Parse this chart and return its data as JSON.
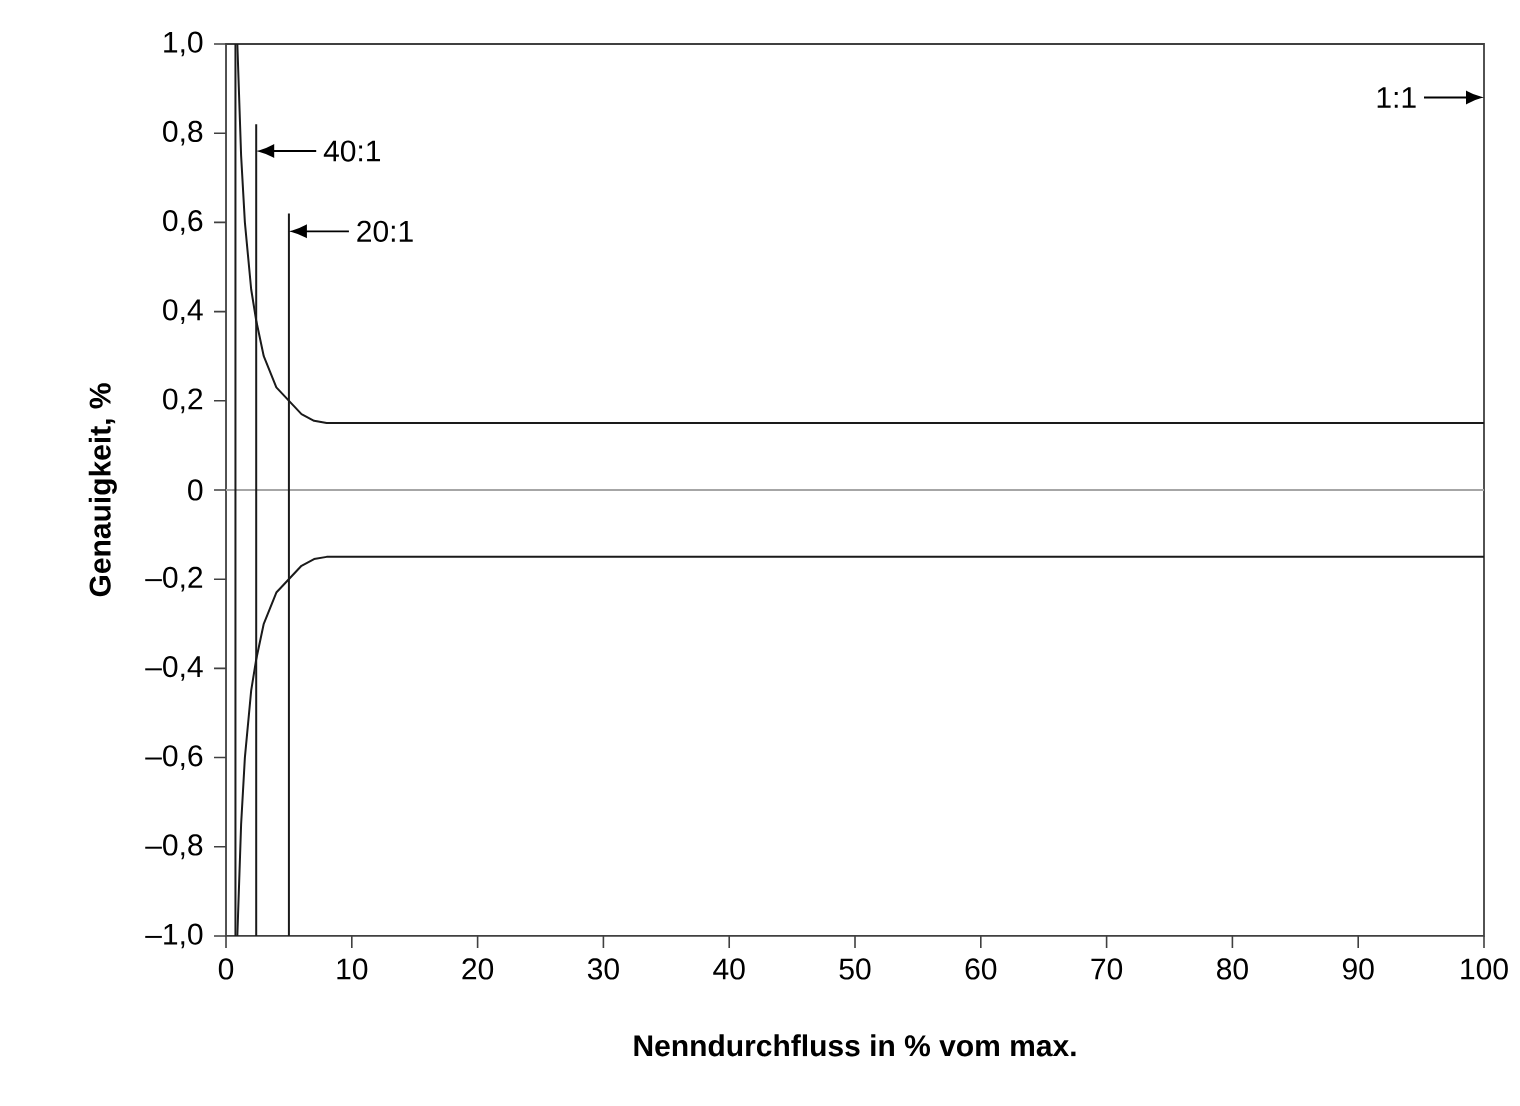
{
  "chart_data": {
    "type": "line",
    "xlabel": "Nenndurchfluss in % vom max.",
    "ylabel": "Genauigkeit, %",
    "xlim": [
      0,
      100
    ],
    "ylim": [
      -1.0,
      1.0
    ],
    "xticks": [
      0,
      10,
      20,
      30,
      40,
      50,
      60,
      70,
      80,
      90,
      100
    ],
    "yticks": [
      {
        "value": -1.0,
        "label": "–1,0"
      },
      {
        "value": -0.8,
        "label": "–0,8"
      },
      {
        "value": -0.6,
        "label": "–0,6"
      },
      {
        "value": -0.4,
        "label": "–0,4"
      },
      {
        "value": -0.2,
        "label": "–0,2"
      },
      0,
      {
        "value": 0.2,
        "label": "0,2"
      },
      {
        "value": 0.4,
        "label": "0,4"
      },
      {
        "value": 0.6,
        "label": "0,6"
      },
      {
        "value": 0.8,
        "label": "0,8"
      },
      {
        "value": 1.0,
        "label": "1,0"
      }
    ],
    "grid": false,
    "marker": "none",
    "line_style": "solid",
    "series": [
      {
        "color": "#1a1a1a",
        "x": [
          0.9,
          1.2,
          1.5,
          2,
          2.4,
          3,
          4,
          5,
          6,
          7,
          8,
          100
        ],
        "values": [
          1.0,
          0.75,
          0.6,
          0.45,
          0.38,
          0.3,
          0.23,
          0.2,
          0.17,
          0.155,
          0.15,
          0.15
        ]
      },
      {
        "color": "#1a1a1a",
        "x": [
          0.9,
          1.2,
          1.5,
          2,
          2.4,
          3,
          4,
          5,
          6,
          7,
          8,
          100
        ],
        "values": [
          -1.0,
          -0.75,
          -0.6,
          -0.45,
          -0.38,
          -0.3,
          -0.23,
          -0.2,
          -0.17,
          -0.155,
          -0.15,
          -0.15
        ]
      },
      {
        "color": "#1a1a1a",
        "x": [
          0.75,
          0.75
        ],
        "values": [
          -1.0,
          1.0
        ]
      },
      {
        "color": "#1a1a1a",
        "x": [
          2.4,
          2.4
        ],
        "values": [
          -1.0,
          0.82
        ]
      },
      {
        "color": "#1a1a1a",
        "x": [
          5,
          5
        ],
        "values": [
          -1.0,
          0.62
        ]
      }
    ],
    "ref_lines": [
      {
        "axis": "y",
        "value": 0,
        "color": "#a6a6a6"
      }
    ],
    "annotations": [
      {
        "text": "40:1",
        "x": 2.4,
        "y": 0.76
      },
      {
        "text": "20:1",
        "x": 5,
        "y": 0.58
      },
      "1:1"
    ]
  }
}
